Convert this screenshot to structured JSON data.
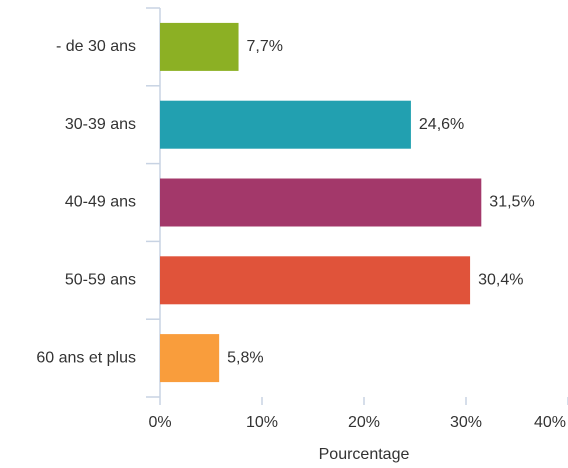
{
  "chart_data": {
    "type": "bar",
    "orientation": "horizontal",
    "categories": [
      "- de 30 ans",
      "30-39 ans",
      "40-49 ans",
      "50-59 ans",
      "60 ans et plus"
    ],
    "values": [
      7.7,
      24.6,
      31.5,
      30.4,
      5.8
    ],
    "value_labels": [
      "7,7%",
      "24,6%",
      "31,5%",
      "30,4%",
      "5,8%"
    ],
    "colors": [
      "#8cb024",
      "#22a0b0",
      "#a3386a",
      "#e0533a",
      "#f99d3c"
    ],
    "xlabel": "Pourcentage",
    "xlim": [
      0,
      40
    ],
    "xticks": [
      {
        "value": 0,
        "label": "0%"
      },
      {
        "value": 10,
        "label": "10%"
      },
      {
        "value": 20,
        "label": "20%"
      },
      {
        "value": 30,
        "label": "30%"
      },
      {
        "value": 40,
        "label": "40%"
      }
    ],
    "grid": false
  }
}
